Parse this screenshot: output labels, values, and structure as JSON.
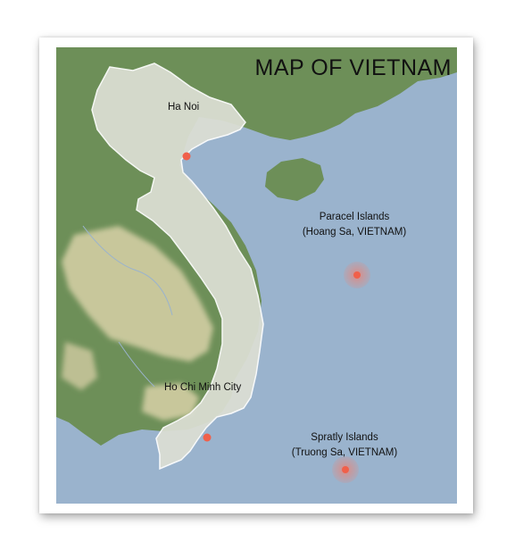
{
  "map": {
    "title": "MAP OF VIETNAM",
    "colors": {
      "sea": "#9ab3cd",
      "land_green": "#6d8f58",
      "land_light": "#c8c79b",
      "vietnam_fill": "#dcdfd4",
      "marker": "#f0604a"
    },
    "places": {
      "hanoi": {
        "name": "Ha Noi"
      },
      "hcmc": {
        "name": "Ho Chi Minh City"
      },
      "paracel": {
        "name": "Paracel Islands",
        "local": "(Hoang Sa, VIETNAM)"
      },
      "spratly": {
        "name": "Spratly Islands",
        "local": "(Truong Sa, VIETNAM)"
      }
    }
  }
}
